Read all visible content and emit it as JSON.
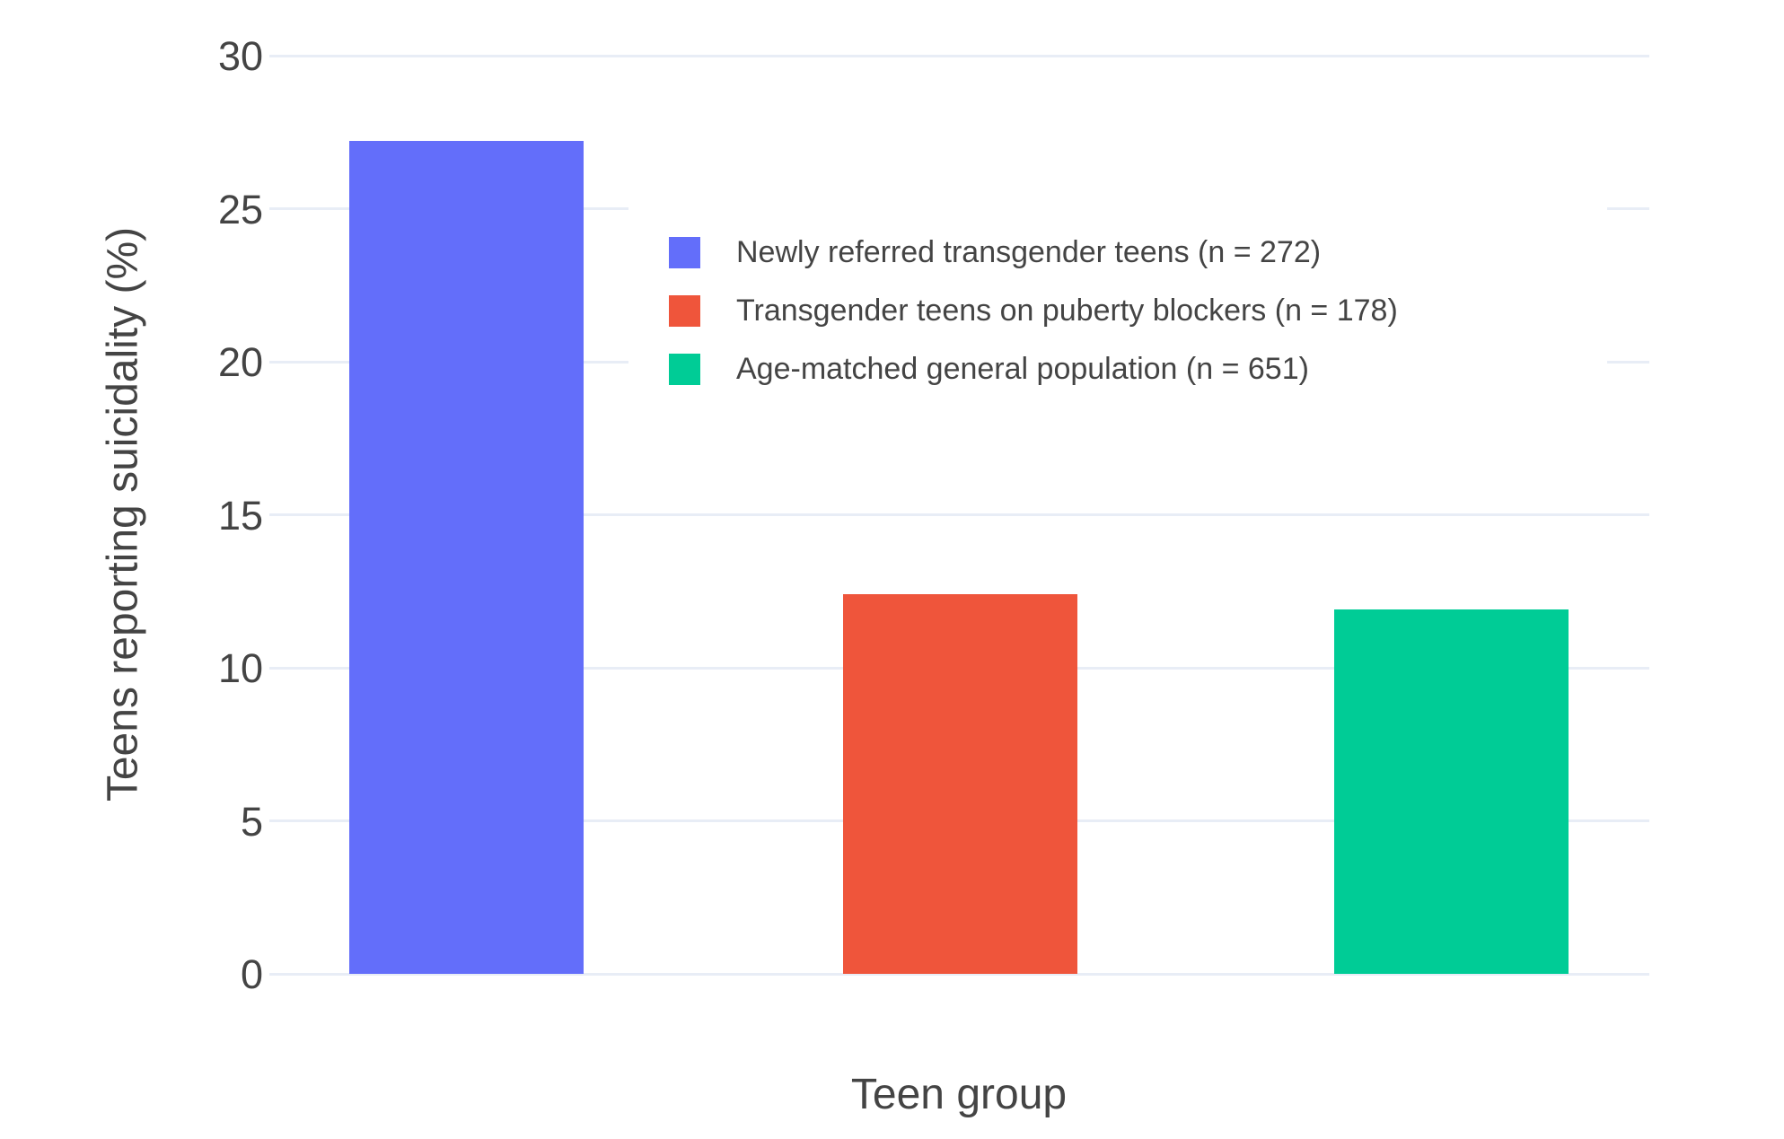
{
  "chart_data": {
    "type": "bar",
    "categories": [
      "Newly referred transgender teens (n = 272)",
      "Transgender teens on puberty blockers (n = 178)",
      "Age-matched general population (n = 651)"
    ],
    "values": [
      27.2,
      12.4,
      11.9
    ],
    "series": [
      {
        "name": "Newly referred transgender teens (n = 272)",
        "value": 27.2,
        "color": "#636EFA"
      },
      {
        "name": "Transgender teens on puberty blockers (n = 178)",
        "value": 12.4,
        "color": "#EF553B"
      },
      {
        "name": "Age-matched general population (n = 651)",
        "value": 11.9,
        "color": "#00CC96"
      }
    ],
    "title": "",
    "xlabel": "Teen group",
    "ylabel": "Teens reporting suicidality (%)",
    "ylim": [
      0,
      30
    ],
    "yticks": [
      0,
      5,
      10,
      15,
      20,
      25,
      30
    ],
    "grid": true,
    "legend_position": "inside-top-center"
  },
  "colors": {
    "grid": "#E8EDF6",
    "text": "#444444",
    "background": "#FFFFFF"
  }
}
